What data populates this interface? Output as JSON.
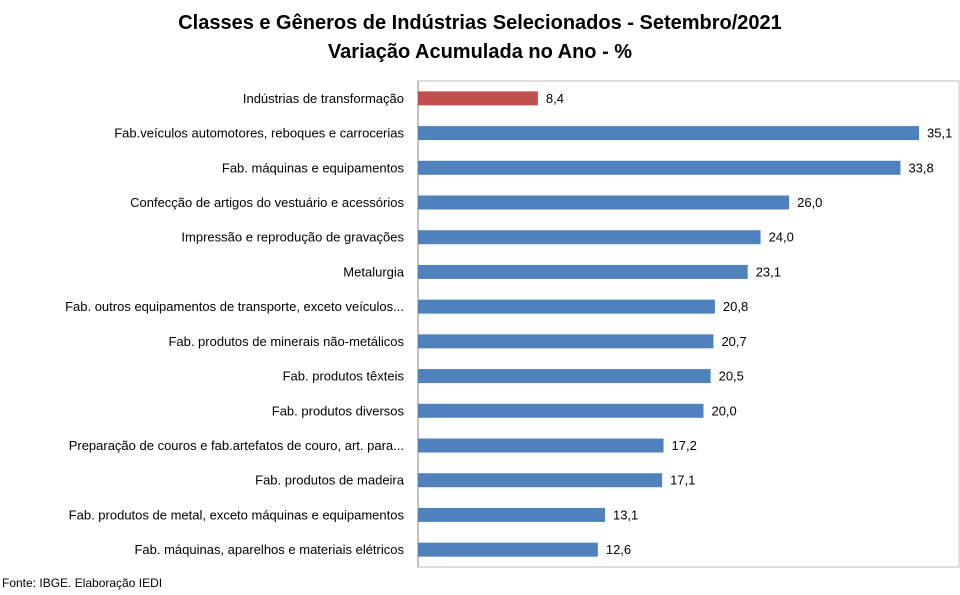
{
  "chart_data": {
    "type": "bar",
    "orientation": "horizontal",
    "title": "Classes e Gêneros de Indústrias Selecionados - Setembro/2021",
    "subtitle": "Variação Acumulada no Ano - %",
    "categories": [
      "Indústrias de transformação",
      "Fab.veículos automotores, reboques e carrocerias",
      "Fab. máquinas e equipamentos",
      "Confecção de artigos do vestuário e acessórios",
      "Impressão e reprodução de gravações",
      "Metalurgia",
      "Fab. outros equipamentos de transporte, exceto veículos...",
      "Fab. produtos de minerais não-metálicos",
      "Fab. produtos têxteis",
      "Fab. produtos diversos",
      "Preparação de couros e fab.artefatos de couro, art. para...",
      "Fab. produtos de madeira",
      "Fab. produtos de metal, exceto máquinas e equipamentos",
      "Fab. máquinas, aparelhos e materiais elétricos"
    ],
    "values": [
      8.4,
      35.1,
      33.8,
      26.0,
      24.0,
      23.1,
      20.8,
      20.7,
      20.5,
      20.0,
      17.2,
      17.1,
      13.1,
      12.6
    ],
    "value_labels": [
      "8,4",
      "35,1",
      "33,8",
      "26,0",
      "24,0",
      "23,1",
      "20,8",
      "20,7",
      "20,5",
      "20,0",
      "17,2",
      "17,1",
      "13,1",
      "12,6"
    ],
    "colors": {
      "highlight": "#C0504D",
      "default": "#4F81BD"
    },
    "highlight_index": 0,
    "xlim": [
      0,
      35.1
    ],
    "grid": false,
    "legend": "none"
  },
  "source": "Fonte: IBGE. Elaboração IEDI"
}
